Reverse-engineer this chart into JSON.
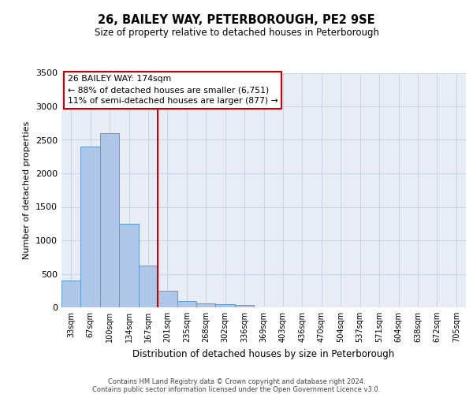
{
  "title": "26, BAILEY WAY, PETERBOROUGH, PE2 9SE",
  "subtitle": "Size of property relative to detached houses in Peterborough",
  "xlabel": "Distribution of detached houses by size in Peterborough",
  "ylabel": "Number of detached properties",
  "categories": [
    "33sqm",
    "67sqm",
    "100sqm",
    "134sqm",
    "167sqm",
    "201sqm",
    "235sqm",
    "268sqm",
    "302sqm",
    "336sqm",
    "369sqm",
    "403sqm",
    "436sqm",
    "470sqm",
    "504sqm",
    "537sqm",
    "571sqm",
    "604sqm",
    "638sqm",
    "672sqm",
    "705sqm"
  ],
  "values": [
    400,
    2400,
    2600,
    1250,
    620,
    250,
    100,
    60,
    50,
    30,
    0,
    0,
    0,
    0,
    0,
    0,
    0,
    0,
    0,
    0,
    0
  ],
  "bar_color": "#aec6e8",
  "bar_edgecolor": "#5b9bd5",
  "grid_color": "#ccd5e3",
  "background_color": "#e8edf5",
  "vline_color": "#cc0000",
  "annotation_text": "26 BAILEY WAY: 174sqm\n← 88% of detached houses are smaller (6,751)\n11% of semi-detached houses are larger (877) →",
  "annotation_box_color": "#ffffff",
  "annotation_box_edgecolor": "#cc0000",
  "ylim": [
    0,
    3500
  ],
  "yticks": [
    0,
    500,
    1000,
    1500,
    2000,
    2500,
    3000,
    3500
  ],
  "footer_line1": "Contains HM Land Registry data © Crown copyright and database right 2024.",
  "footer_line2": "Contains public sector information licensed under the Open Government Licence v3.0."
}
